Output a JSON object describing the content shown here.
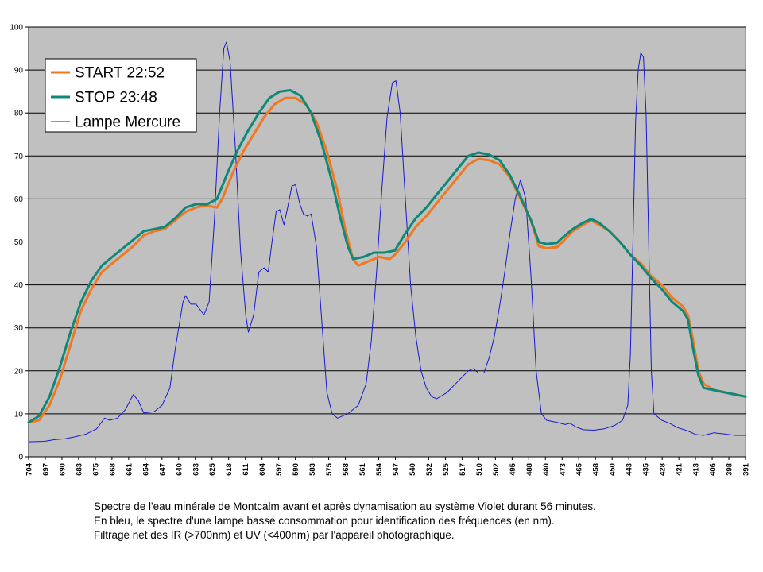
{
  "chart_data": {
    "type": "line",
    "ylim": [
      0,
      100
    ],
    "yticks": [
      0,
      10,
      20,
      30,
      40,
      50,
      60,
      70,
      80,
      90,
      100
    ],
    "grid": true,
    "legend_position": "top-left",
    "x_tick_labels": [
      "704",
      "697",
      "690",
      "683",
      "675",
      "668",
      "661",
      "654",
      "647",
      "640",
      "633",
      "625",
      "618",
      "611",
      "604",
      "597",
      "590",
      "583",
      "575",
      "568",
      "561",
      "554",
      "547",
      "540",
      "532",
      "525",
      "517",
      "510",
      "502",
      "495",
      "488",
      "480",
      "473",
      "465",
      "458",
      "450",
      "443",
      "435",
      "428",
      "421",
      "413",
      "406",
      "398",
      "391"
    ],
    "series": [
      {
        "name": "START 22:52",
        "color": "#f07820",
        "width": 3,
        "points": [
          [
            0,
            8
          ],
          [
            2,
            8.5
          ],
          [
            4,
            12
          ],
          [
            6,
            18
          ],
          [
            8,
            26
          ],
          [
            10,
            34
          ],
          [
            12,
            39
          ],
          [
            14,
            43
          ],
          [
            16,
            45
          ],
          [
            18,
            47
          ],
          [
            20,
            49
          ],
          [
            22,
            51.5
          ],
          [
            24,
            52.5
          ],
          [
            26,
            53
          ],
          [
            28,
            55
          ],
          [
            30,
            57
          ],
          [
            32,
            58
          ],
          [
            34,
            58.5
          ],
          [
            36,
            58
          ],
          [
            37,
            60
          ],
          [
            39,
            66
          ],
          [
            41,
            71
          ],
          [
            43,
            75
          ],
          [
            45,
            79
          ],
          [
            47,
            82
          ],
          [
            49,
            83.5
          ],
          [
            51,
            83.5
          ],
          [
            53,
            82
          ],
          [
            55,
            78
          ],
          [
            57,
            71
          ],
          [
            59,
            62
          ],
          [
            60.5,
            53
          ],
          [
            62,
            46
          ],
          [
            63,
            44.5
          ],
          [
            65,
            45.5
          ],
          [
            67,
            46.5
          ],
          [
            69,
            46
          ],
          [
            70,
            47
          ],
          [
            72,
            50
          ],
          [
            74,
            53.5
          ],
          [
            76,
            56
          ],
          [
            78,
            59
          ],
          [
            80,
            62
          ],
          [
            82,
            65
          ],
          [
            84,
            68
          ],
          [
            86,
            69.3
          ],
          [
            88,
            69
          ],
          [
            90,
            68
          ],
          [
            92,
            65
          ],
          [
            94,
            60
          ],
          [
            96,
            55
          ],
          [
            97.5,
            49
          ],
          [
            99,
            48.5
          ],
          [
            101,
            48.8
          ],
          [
            102,
            50
          ],
          [
            104,
            52.5
          ],
          [
            106,
            54
          ],
          [
            107.5,
            55
          ],
          [
            109,
            54
          ],
          [
            111,
            52.5
          ],
          [
            113,
            50
          ],
          [
            115,
            47
          ],
          [
            117,
            45
          ],
          [
            119,
            42
          ],
          [
            121,
            40
          ],
          [
            123,
            37
          ],
          [
            125,
            35
          ],
          [
            126,
            33
          ],
          [
            127,
            27
          ],
          [
            128,
            20
          ],
          [
            129,
            17
          ],
          [
            131,
            15.5
          ],
          [
            133,
            15
          ],
          [
            135,
            14.5
          ],
          [
            137,
            14
          ]
        ]
      },
      {
        "name": "STOP 23:48",
        "color": "#108878",
        "width": 3,
        "points": [
          [
            0,
            8
          ],
          [
            2,
            9.5
          ],
          [
            4,
            14
          ],
          [
            6,
            21
          ],
          [
            8,
            29
          ],
          [
            10,
            36
          ],
          [
            12,
            41
          ],
          [
            14,
            44.5
          ],
          [
            16,
            46.5
          ],
          [
            18,
            48.5
          ],
          [
            20,
            50.5
          ],
          [
            22,
            52.5
          ],
          [
            24,
            53
          ],
          [
            26,
            53.5
          ],
          [
            28,
            55.5
          ],
          [
            30,
            58
          ],
          [
            32,
            58.8
          ],
          [
            34,
            58.7
          ],
          [
            36,
            60
          ],
          [
            38,
            66
          ],
          [
            40,
            71.5
          ],
          [
            42,
            76
          ],
          [
            44,
            80
          ],
          [
            46,
            83.5
          ],
          [
            48,
            85
          ],
          [
            50,
            85.3
          ],
          [
            52,
            84
          ],
          [
            54,
            80
          ],
          [
            56,
            73
          ],
          [
            58,
            64
          ],
          [
            59.5,
            56
          ],
          [
            61,
            49
          ],
          [
            62,
            46
          ],
          [
            64,
            46.5
          ],
          [
            66,
            47.5
          ],
          [
            68,
            47.5
          ],
          [
            70,
            48
          ],
          [
            72,
            52
          ],
          [
            74,
            55.5
          ],
          [
            76,
            58
          ],
          [
            78,
            61
          ],
          [
            80,
            64
          ],
          [
            82,
            67
          ],
          [
            84,
            70
          ],
          [
            86,
            70.8
          ],
          [
            88,
            70.3
          ],
          [
            90,
            69
          ],
          [
            92,
            65.5
          ],
          [
            94,
            60.5
          ],
          [
            96,
            55
          ],
          [
            97.5,
            50
          ],
          [
            99,
            49.5
          ],
          [
            101,
            49.8
          ],
          [
            102,
            51
          ],
          [
            104,
            53
          ],
          [
            106,
            54.5
          ],
          [
            107.5,
            55.3
          ],
          [
            109,
            54.5
          ],
          [
            111,
            52.5
          ],
          [
            113,
            50
          ],
          [
            115,
            47
          ],
          [
            117,
            44.5
          ],
          [
            119,
            41.5
          ],
          [
            121,
            39
          ],
          [
            123,
            36
          ],
          [
            125,
            34
          ],
          [
            126,
            32
          ],
          [
            127,
            25
          ],
          [
            128,
            19
          ],
          [
            129,
            16
          ],
          [
            131,
            15.5
          ],
          [
            133,
            15
          ],
          [
            135,
            14.5
          ],
          [
            137,
            14
          ]
        ]
      },
      {
        "name": "Lampe Mercure",
        "color": "#1818d0",
        "width": 1,
        "points": [
          [
            0,
            3.5
          ],
          [
            3,
            3.6
          ],
          [
            5,
            4
          ],
          [
            7,
            4.2
          ],
          [
            9,
            4.7
          ],
          [
            11,
            5.3
          ],
          [
            13,
            6.5
          ],
          [
            14.5,
            9
          ],
          [
            15.5,
            8.5
          ],
          [
            17,
            9
          ],
          [
            18.5,
            11
          ],
          [
            20,
            14.5
          ],
          [
            21,
            13
          ],
          [
            22,
            10.2
          ],
          [
            24,
            10.5
          ],
          [
            25.5,
            12
          ],
          [
            27,
            16
          ],
          [
            28,
            25
          ],
          [
            29.5,
            36
          ],
          [
            30,
            37.5
          ],
          [
            31,
            35.5
          ],
          [
            32,
            35.5
          ],
          [
            33.5,
            33
          ],
          [
            34.5,
            36
          ],
          [
            35.5,
            55
          ],
          [
            36.5,
            80
          ],
          [
            37.3,
            95
          ],
          [
            37.8,
            96.5
          ],
          [
            38.5,
            92
          ],
          [
            39.5,
            72
          ],
          [
            40.5,
            48
          ],
          [
            41.5,
            33
          ],
          [
            42,
            29
          ],
          [
            43,
            33
          ],
          [
            44,
            43
          ],
          [
            45,
            44
          ],
          [
            45.8,
            43
          ],
          [
            46.5,
            50
          ],
          [
            47.3,
            57
          ],
          [
            48,
            57.5
          ],
          [
            48.8,
            54
          ],
          [
            49.5,
            58
          ],
          [
            50.3,
            63
          ],
          [
            51,
            63.3
          ],
          [
            51.8,
            59
          ],
          [
            52.5,
            56.5
          ],
          [
            53.3,
            56
          ],
          [
            54,
            56.5
          ],
          [
            55,
            49
          ],
          [
            56,
            32
          ],
          [
            57,
            15
          ],
          [
            58,
            10
          ],
          [
            59,
            9
          ],
          [
            61,
            10
          ],
          [
            63,
            12
          ],
          [
            64.5,
            17
          ],
          [
            65.5,
            27
          ],
          [
            66.5,
            43
          ],
          [
            67.5,
            62
          ],
          [
            68.5,
            79
          ],
          [
            69.5,
            87
          ],
          [
            70.2,
            87.5
          ],
          [
            71,
            80
          ],
          [
            72,
            60
          ],
          [
            73,
            40
          ],
          [
            74,
            28
          ],
          [
            75,
            20
          ],
          [
            76,
            16
          ],
          [
            77,
            14
          ],
          [
            78,
            13.5
          ],
          [
            80,
            15
          ],
          [
            82,
            17.5
          ],
          [
            84,
            20
          ],
          [
            85,
            20.5
          ],
          [
            86,
            19.5
          ],
          [
            87,
            19.5
          ],
          [
            88,
            23
          ],
          [
            89,
            28
          ],
          [
            90,
            35
          ],
          [
            91,
            43
          ],
          [
            92,
            52
          ],
          [
            93,
            60
          ],
          [
            94,
            64.5
          ],
          [
            95,
            60
          ],
          [
            96,
            42
          ],
          [
            97,
            20
          ],
          [
            98,
            10
          ],
          [
            99,
            8.5
          ],
          [
            101,
            8
          ],
          [
            102.5,
            7.5
          ],
          [
            103.5,
            7.8
          ],
          [
            104.5,
            7
          ],
          [
            106,
            6.3
          ],
          [
            108,
            6.2
          ],
          [
            110,
            6.5
          ],
          [
            112,
            7.3
          ],
          [
            113.5,
            8.5
          ],
          [
            114.5,
            12
          ],
          [
            115,
            24
          ],
          [
            115.5,
            50
          ],
          [
            116,
            78
          ],
          [
            116.5,
            90
          ],
          [
            117,
            94
          ],
          [
            117.5,
            93
          ],
          [
            118,
            80
          ],
          [
            118.5,
            50
          ],
          [
            119,
            20
          ],
          [
            119.5,
            10
          ],
          [
            121,
            8.5
          ],
          [
            122.5,
            7.8
          ],
          [
            124,
            6.8
          ],
          [
            126,
            6
          ],
          [
            127.5,
            5.2
          ],
          [
            129,
            5
          ],
          [
            131,
            5.6
          ],
          [
            133,
            5.3
          ],
          [
            135,
            5
          ],
          [
            137,
            5
          ]
        ]
      }
    ]
  },
  "caption": {
    "line1": "Spectre de l'eau minérale de Montcalm avant et après dynamisation au système Violet durant 56 minutes.",
    "line2": "En bleu, le spectre d'une lampe basse consommation pour identification des fréquences (en nm).",
    "line3": "Filtrage net des IR (>700nm) et UV (<400nm) par l'appareil photographique."
  }
}
